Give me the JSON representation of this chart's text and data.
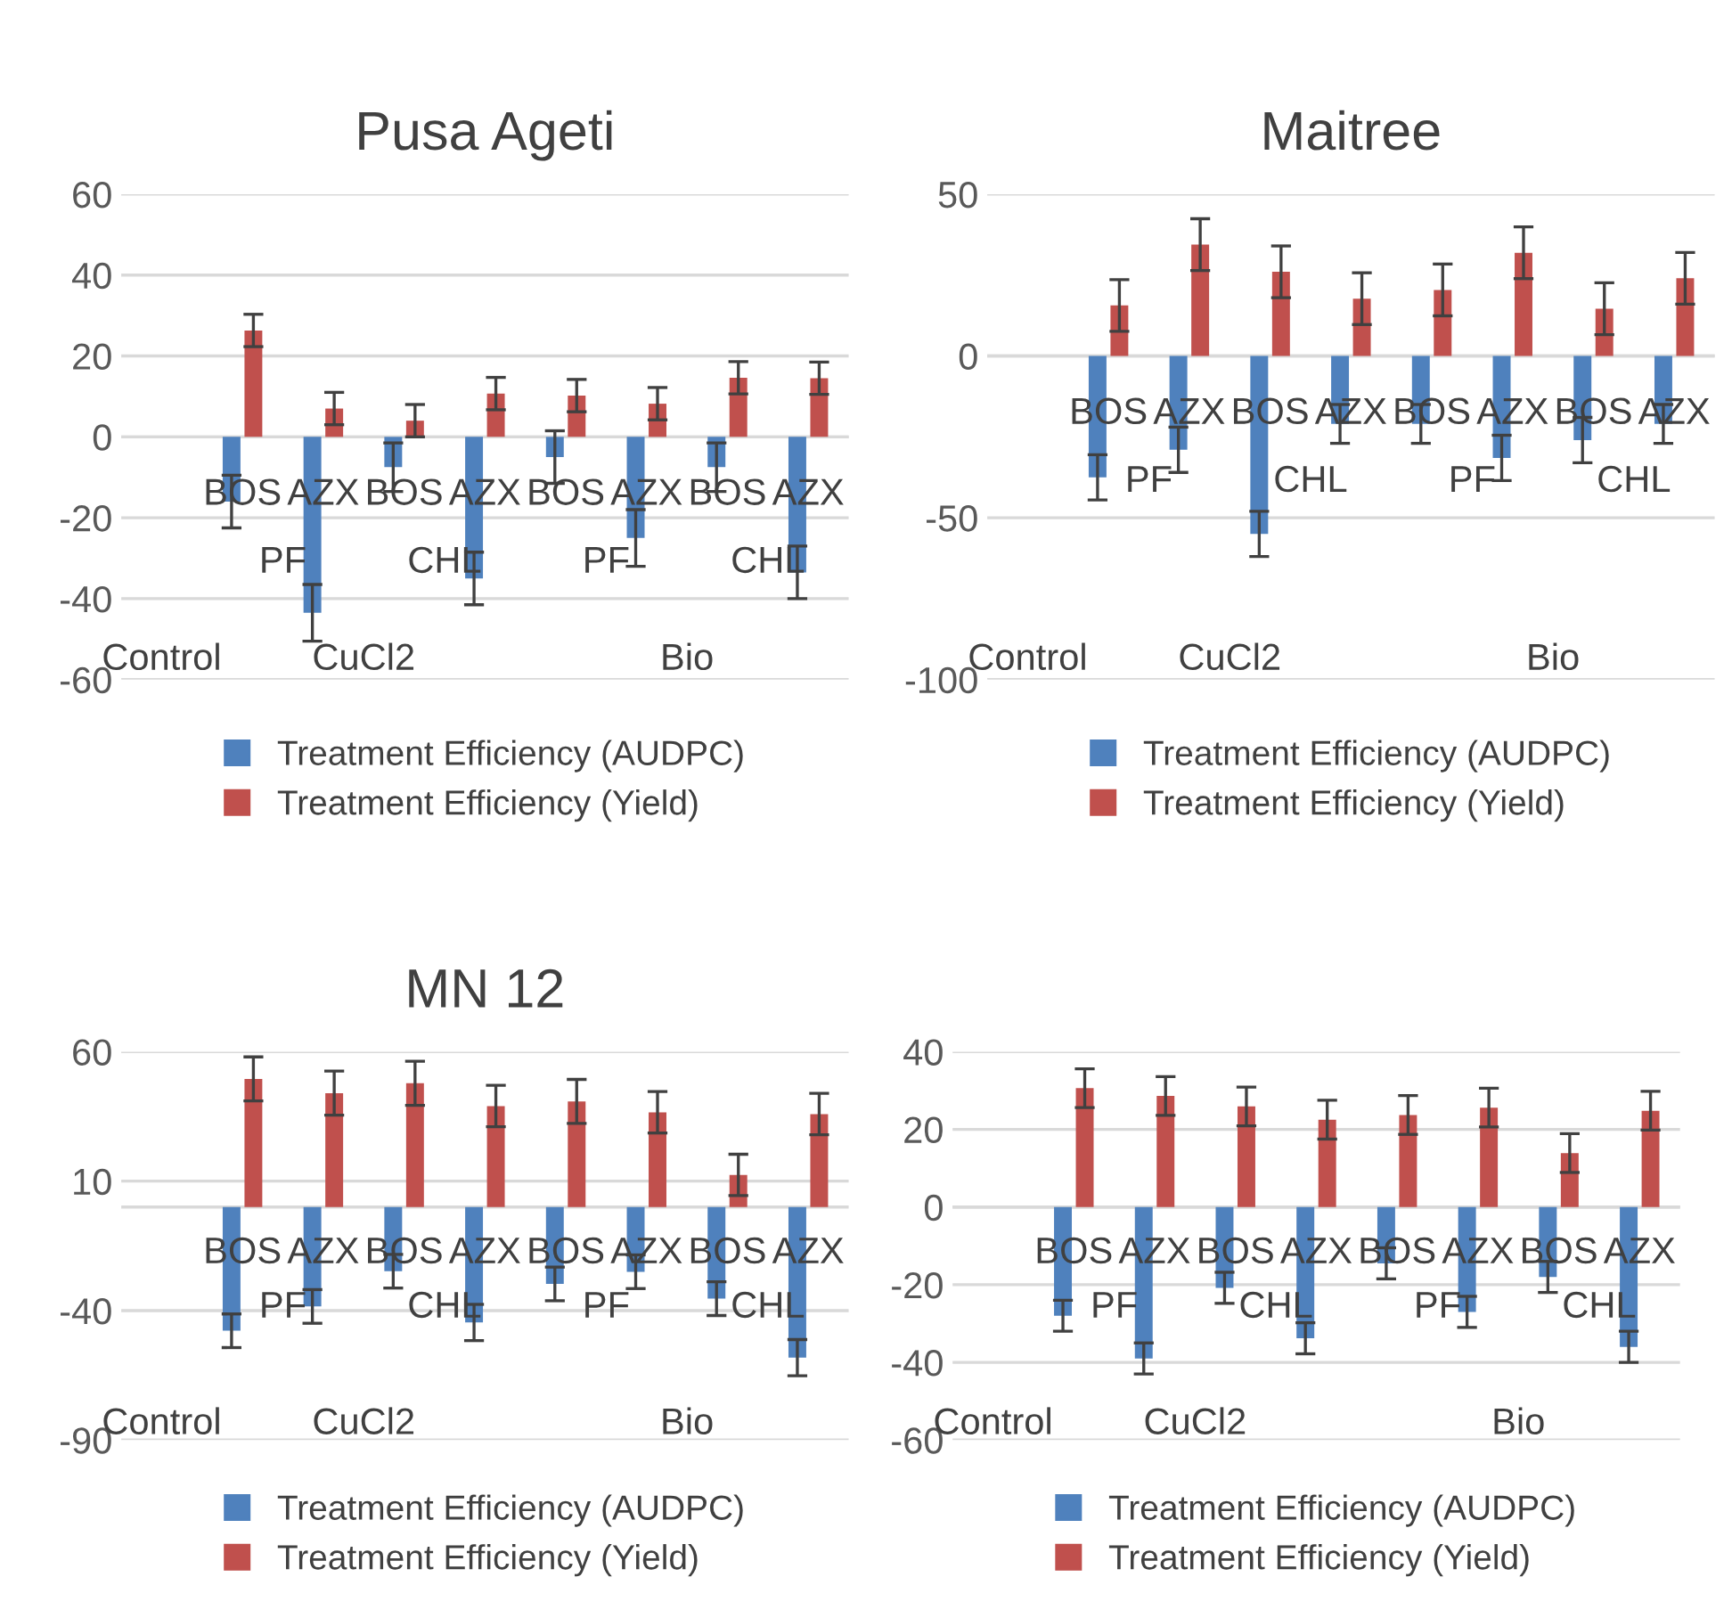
{
  "chart_data": [
    {
      "type": "bar",
      "title": "Pusa Ageti",
      "categories": [
        null,
        "BOS",
        "AZX",
        "BOS",
        "AZX",
        "BOS",
        "AZX",
        "BOS",
        "AZX"
      ],
      "annotations": [
        "PF",
        "CHL",
        "PF",
        "CHL",
        "Control",
        "CuCl2",
        "Bio"
      ],
      "ylim": [
        -60,
        60
      ],
      "yticks": [
        -60,
        -40,
        -20,
        0,
        20,
        40,
        60
      ],
      "grid": "y",
      "legend": "bottom",
      "series": [
        {
          "name": "Treatment Efficiency (AUDPC)",
          "color": "#4f81bd",
          "values": [
            null,
            -16,
            -43.5,
            -7.5,
            -35,
            -5,
            -25,
            -7.5,
            -33.5
          ],
          "errors": [
            null,
            6.5,
            7,
            6,
            6.5,
            6.5,
            7,
            6,
            6.5
          ]
        },
        {
          "name": "Treatment Efficiency (Yield)",
          "color": "#c0504d",
          "values": [
            null,
            26.3,
            7,
            4,
            10.7,
            10.2,
            8.2,
            14.6,
            14.5
          ],
          "errors": [
            null,
            4,
            4,
            4,
            4,
            4,
            4,
            4,
            4
          ]
        }
      ]
    },
    {
      "type": "bar",
      "title": "Maitree",
      "categories": [
        null,
        "BOS",
        "AZX",
        "BOS",
        "AZX",
        "BOS",
        "AZX",
        "BOS",
        "AZX"
      ],
      "annotations": [
        "PF",
        "CHL",
        "PF",
        "CHL",
        "Control",
        "CuCl2",
        "Bio"
      ],
      "ylim": [
        -100,
        50
      ],
      "yticks": [
        -100,
        -50,
        0,
        50
      ],
      "grid": "y",
      "legend": "bottom",
      "series": [
        {
          "name": "Treatment Efficiency (AUDPC)",
          "color": "#4f81bd",
          "values": [
            null,
            -37.5,
            -29,
            -55,
            -21,
            -21,
            -31.5,
            -26,
            -21
          ],
          "errors": [
            null,
            7,
            7,
            7,
            6,
            6,
            7,
            7,
            6
          ]
        },
        {
          "name": "Treatment Efficiency (Yield)",
          "color": "#c0504d",
          "values": [
            null,
            15.6,
            34.4,
            26,
            17.7,
            20.4,
            31.9,
            14.6,
            24
          ],
          "errors": [
            null,
            8,
            8,
            8,
            8,
            8,
            8,
            8,
            8
          ]
        }
      ]
    },
    {
      "type": "bar",
      "title": "MN 12",
      "categories": [
        null,
        "BOS",
        "AZX",
        "BOS",
        "AZX",
        "BOS",
        "AZX",
        "BOS",
        "AZX"
      ],
      "annotations": [
        "PF",
        "CHL",
        "PF",
        "CHL",
        "Control",
        "CuCl2",
        "Bio"
      ],
      "ylim": [
        -90,
        60
      ],
      "yticks": [
        -90,
        -40,
        10,
        60
      ],
      "grid": "y",
      "legend": "bottom",
      "series": [
        {
          "name": "Treatment Efficiency (AUDPC)",
          "color": "#4f81bd",
          "values": [
            null,
            -47.8,
            -38.4,
            -24.8,
            -44.6,
            -29.7,
            -25,
            -35.4,
            -58.2
          ],
          "errors": [
            null,
            6.5,
            6.5,
            6.5,
            7,
            6.5,
            6.5,
            6.5,
            7
          ]
        },
        {
          "name": "Treatment Efficiency (Yield)",
          "color": "#c0504d",
          "values": [
            null,
            49.5,
            44,
            47.8,
            39,
            40.8,
            36.6,
            12.4,
            35.9
          ],
          "errors": [
            null,
            8.5,
            8.5,
            8.5,
            8,
            8.5,
            8,
            8,
            8
          ]
        }
      ]
    },
    {
      "type": "bar",
      "categories": [
        null,
        "BOS",
        "AZX",
        "BOS",
        "AZX",
        "BOS",
        "AZX",
        "BOS",
        "AZX"
      ],
      "annotations": [
        "PF",
        "CHL",
        "PF",
        "CHL",
        "Control",
        "CuCl2",
        "Bio"
      ],
      "ylim": [
        -60,
        40
      ],
      "yticks": [
        -60,
        -40,
        -20,
        0,
        20,
        40
      ],
      "grid": "y",
      "legend": "bottom",
      "series": [
        {
          "name": "Treatment Efficiency (AUDPC)",
          "color": "#4f81bd",
          "values": [
            null,
            -28,
            -39,
            -20.8,
            -33.8,
            -14.5,
            -27,
            -18,
            -36
          ],
          "errors": [
            null,
            4,
            4,
            4,
            4,
            4,
            4,
            4,
            4
          ]
        },
        {
          "name": "Treatment Efficiency (Yield)",
          "color": "#c0504d",
          "values": [
            null,
            30.6,
            28.6,
            25.9,
            22.5,
            23.7,
            25.6,
            13.9,
            24.8
          ],
          "errors": [
            null,
            5,
            5,
            5,
            5,
            5,
            5,
            5,
            5
          ]
        }
      ]
    }
  ]
}
